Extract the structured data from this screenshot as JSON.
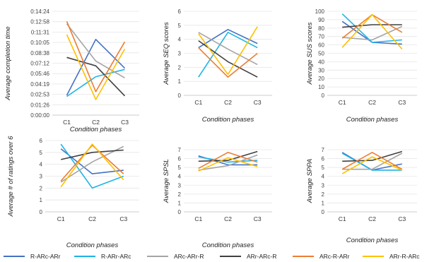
{
  "chart_data": [
    {
      "type": "line",
      "ylabel": "Average completion time",
      "xlabel": "Condition phases",
      "categories": [
        "C1",
        "C2",
        "C3"
      ],
      "yticks": [
        "0:00:00",
        "0:01:26",
        "0:02:53",
        "0:04:19",
        "0:05:46",
        "0:07:12",
        "0:08:38",
        "0:10:05",
        "0:11:31",
        "0:12:58",
        "0:14:24"
      ],
      "ylim": [
        0,
        864
      ],
      "series": [
        {
          "name": "R-ARc-ARr",
          "values": [
            165,
            630,
            390
          ]
        },
        {
          "name": "R-ARr-ARc",
          "values": [
            155,
            320,
            380
          ]
        },
        {
          "name": "ARc-ARr-R",
          "values": [
            760,
            450,
            310
          ]
        },
        {
          "name": "ARr-ARc-R",
          "values": [
            480,
            410,
            160
          ]
        },
        {
          "name": "ARc-R-ARr",
          "values": [
            780,
            195,
            610
          ]
        },
        {
          "name": "ARr-R-ARc",
          "values": [
            670,
            130,
            550
          ]
        }
      ]
    },
    {
      "type": "line",
      "ylabel": "Average SEQ scores",
      "xlabel": "Condition phases",
      "categories": [
        "C1",
        "C2",
        "C3"
      ],
      "yticks": [
        "0",
        "1",
        "2",
        "3",
        "4",
        "5",
        "6"
      ],
      "ylim": [
        0,
        6
      ],
      "series": [
        {
          "name": "R-ARc-ARr",
          "values": [
            3.4,
            4.7,
            3.7
          ]
        },
        {
          "name": "R-ARr-ARc",
          "values": [
            1.3,
            4.5,
            3.4
          ]
        },
        {
          "name": "ARc-ARr-R",
          "values": [
            4.5,
            3.3,
            2.2
          ]
        },
        {
          "name": "ARr-ARc-R",
          "values": [
            3.9,
            2.4,
            1.3
          ]
        },
        {
          "name": "ARc-R-ARr",
          "values": [
            3.4,
            1.3,
            3.0
          ]
        },
        {
          "name": "ARr-R-ARc",
          "values": [
            4.4,
            1.5,
            4.9
          ]
        }
      ]
    },
    {
      "type": "line",
      "ylabel": "Average SUS scores",
      "xlabel": "Condition phases",
      "categories": [
        "C1",
        "C2",
        "C3"
      ],
      "yticks": [
        "0",
        "10",
        "20",
        "30",
        "40",
        "50",
        "60",
        "70",
        "80",
        "90",
        "100"
      ],
      "ylim": [
        0,
        100
      ],
      "series": [
        {
          "name": "R-ARc-ARr",
          "values": [
            88,
            63,
            61
          ]
        },
        {
          "name": "R-ARr-ARc",
          "values": [
            97,
            63,
            66
          ]
        },
        {
          "name": "ARc-ARr-R",
          "values": [
            69,
            66,
            82
          ]
        },
        {
          "name": "ARr-ARc-R",
          "values": [
            81,
            84,
            84
          ]
        },
        {
          "name": "ARc-R-ARr",
          "values": [
            68,
            96,
            75
          ]
        },
        {
          "name": "ARr-R-ARc",
          "values": [
            57,
            96,
            55
          ]
        }
      ]
    },
    {
      "type": "line",
      "ylabel": "Average # of ratings over 6",
      "xlabel": "Condition phases",
      "categories": [
        "C1",
        "C2",
        "C3"
      ],
      "yticks": [
        "0",
        "1",
        "2",
        "3",
        "4",
        "5",
        "6"
      ],
      "ylim": [
        0,
        6
      ],
      "series": [
        {
          "name": "R-ARc-ARr",
          "values": [
            5.3,
            3.2,
            3.5
          ]
        },
        {
          "name": "R-ARr-ARc",
          "values": [
            5.7,
            2.0,
            3.0
          ]
        },
        {
          "name": "ARc-ARr-R",
          "values": [
            2.5,
            4.2,
            5.5
          ]
        },
        {
          "name": "ARr-ARc-R",
          "values": [
            4.4,
            5.0,
            5.2
          ]
        },
        {
          "name": "ARc-R-ARr",
          "values": [
            2.6,
            5.6,
            3.2
          ]
        },
        {
          "name": "ARr-R-ARc",
          "values": [
            2.1,
            5.7,
            2.7
          ]
        }
      ]
    },
    {
      "type": "line",
      "ylabel": "Average SPSL",
      "xlabel": "Condition phases",
      "categories": [
        "C1",
        "C2",
        "C3"
      ],
      "yticks": [
        "0",
        "1",
        "2",
        "3",
        "4",
        "5",
        "6",
        "7"
      ],
      "ylim": [
        0,
        7
      ],
      "series": [
        {
          "name": "R-ARc-ARr",
          "values": [
            6.3,
            5.3,
            5.3
          ]
        },
        {
          "name": "R-ARr-ARc",
          "values": [
            6.2,
            5.6,
            5.8
          ]
        },
        {
          "name": "ARc-ARr-R",
          "values": [
            4.7,
            5.2,
            6.4
          ]
        },
        {
          "name": "ARr-ARc-R",
          "values": [
            5.7,
            5.8,
            6.8
          ]
        },
        {
          "name": "ARc-R-ARr",
          "values": [
            4.9,
            6.7,
            5.6
          ]
        },
        {
          "name": "ARr-R-ARc",
          "values": [
            4.6,
            6.1,
            5.1
          ]
        }
      ]
    },
    {
      "type": "line",
      "ylabel": "Average SPPA",
      "xlabel": "Condition phases",
      "categories": [
        "C1",
        "C2",
        "C3"
      ],
      "yticks": [
        "0",
        "1",
        "2",
        "3",
        "4",
        "5",
        "6",
        "7"
      ],
      "ylim": [
        0,
        7
      ],
      "series": [
        {
          "name": "R-ARc-ARr",
          "values": [
            6.7,
            4.7,
            5.4
          ]
        },
        {
          "name": "R-ARr-ARc",
          "values": [
            6.6,
            4.7,
            4.7
          ]
        },
        {
          "name": "ARc-ARr-R",
          "values": [
            4.8,
            4.8,
            6.6
          ]
        },
        {
          "name": "ARr-ARc-R",
          "values": [
            5.7,
            5.8,
            6.8
          ]
        },
        {
          "name": "ARc-R-ARr",
          "values": [
            4.8,
            6.7,
            4.8
          ]
        },
        {
          "name": "ARr-R-ARc",
          "values": [
            4.3,
            6.2,
            4.7
          ]
        }
      ]
    }
  ],
  "legend": {
    "placement": "bottom",
    "entries": [
      {
        "name": "R-ARc-ARr",
        "color": "#4472C4"
      },
      {
        "name": "R-ARr-ARc",
        "color": "#1EB4E6"
      },
      {
        "name": "ARc-ARr-R",
        "color": "#A5A5A5"
      },
      {
        "name": "ARr-ARc-R",
        "color": "#404040"
      },
      {
        "name": "ARc-R-ARr",
        "color": "#ED7D31"
      },
      {
        "name": "ARr-R-ARc",
        "color": "#FFC000"
      }
    ]
  }
}
